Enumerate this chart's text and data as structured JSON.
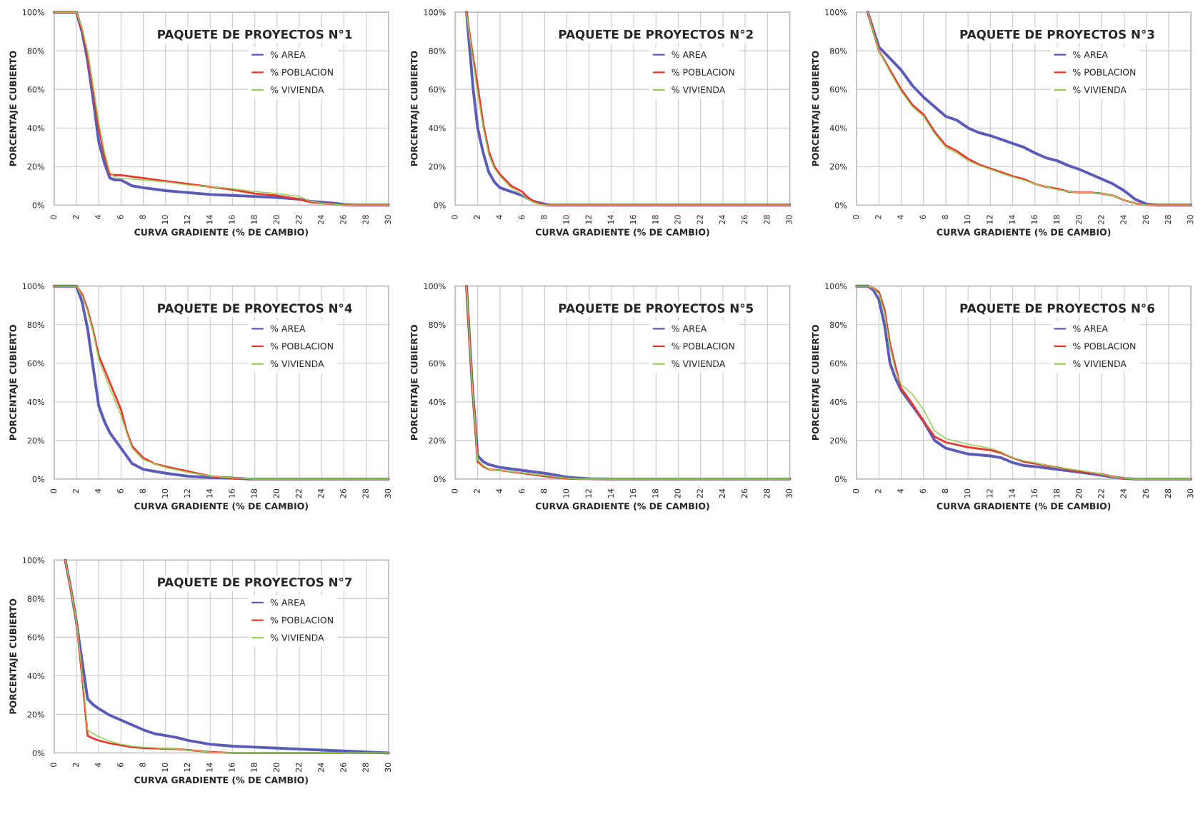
{
  "chart_data": [
    {
      "type": "line",
      "title": "PAQUETE DE PROYECTOS N°1",
      "xlabel": "CURVA GRADIENTE (% DE CAMBIO)",
      "ylabel": "PORCENTAJE CUBIERTO",
      "xlim": [
        0,
        30
      ],
      "xticks": [
        0,
        2,
        4,
        6,
        8,
        10,
        12,
        14,
        16,
        18,
        20,
        22,
        24,
        26,
        28,
        30
      ],
      "ylim": [
        0,
        100
      ],
      "yticks": [
        {
          "value": 0,
          "label": "0%"
        },
        {
          "value": 20,
          "label": "20%"
        },
        {
          "value": 40,
          "label": "40%"
        },
        {
          "value": 60,
          "label": "60%"
        },
        {
          "value": 80,
          "label": "80%"
        },
        {
          "value": 100,
          "label": "100%"
        }
      ],
      "grid": true,
      "legend": "top right",
      "series": [
        {
          "name": "% AREA",
          "color": "#5b5bb8",
          "x": [
            0,
            2,
            2.5,
            3,
            3.5,
            4,
            4.5,
            5,
            5.5,
            6,
            6.5,
            7,
            8,
            10,
            12,
            14,
            16,
            18,
            20,
            22,
            23,
            24,
            25,
            26,
            27,
            30
          ],
          "values": [
            100,
            100,
            90,
            75,
            55,
            33,
            22,
            14,
            13,
            13,
            11.5,
            10,
            9,
            7.5,
            6.5,
            5.5,
            5,
            4.5,
            4,
            3,
            2,
            1.5,
            1,
            0.3,
            0,
            0
          ]
        },
        {
          "name": "% POBLACION",
          "color": "#e8382c",
          "x": [
            0,
            2,
            2.5,
            3,
            3.5,
            4,
            4.5,
            5,
            5.5,
            6,
            8,
            10,
            12,
            14,
            16,
            18,
            20,
            21,
            22,
            23,
            24,
            25,
            26,
            30
          ],
          "values": [
            100,
            100,
            91,
            78,
            60,
            40,
            26,
            16,
            15.5,
            15.5,
            14,
            12.5,
            11,
            9.5,
            8,
            6,
            5,
            4,
            3,
            1.5,
            1,
            0.5,
            0,
            0
          ]
        },
        {
          "name": "% VIVIENDA",
          "color": "#9acd5a",
          "x": [
            0,
            2,
            2.5,
            3,
            3.5,
            4,
            4.5,
            5,
            5.5,
            6,
            8,
            10,
            12,
            14,
            16,
            18,
            20,
            22,
            23,
            24,
            25,
            26,
            30
          ],
          "values": [
            100,
            100,
            92,
            80,
            62,
            43,
            28,
            17,
            14,
            14,
            13,
            12,
            10.5,
            9.5,
            8.5,
            7,
            6,
            4.5,
            2,
            1,
            0.5,
            0,
            0
          ]
        }
      ]
    },
    {
      "type": "line",
      "title": "PAQUETE DE PROYECTOS N°2",
      "xlabel": "CURVA GRADIENTE (% DE CAMBIO)",
      "ylabel": "PORCENTAJE CUBIERTO",
      "xlim": [
        0,
        30
      ],
      "xticks": [
        0,
        2,
        4,
        6,
        8,
        10,
        12,
        14,
        16,
        18,
        20,
        22,
        24,
        26,
        28,
        30
      ],
      "ylim": [
        0,
        100
      ],
      "yticks": [
        {
          "value": 0,
          "label": "0%"
        },
        {
          "value": 20,
          "label": "20%"
        },
        {
          "value": 40,
          "label": "40%"
        },
        {
          "value": 60,
          "label": "60%"
        },
        {
          "value": 80,
          "label": "80%"
        },
        {
          "value": 100,
          "label": "100%"
        }
      ],
      "grid": true,
      "legend": "top right",
      "series": [
        {
          "name": "% AREA",
          "color": "#5b5bb8",
          "x": [
            1,
            1.3,
            1.6,
            2,
            2.5,
            3,
            3.5,
            4,
            5,
            6,
            6.5,
            7,
            8,
            8.5,
            30
          ],
          "values": [
            100,
            80,
            60,
            40,
            27,
            17,
            12,
            9,
            7,
            5,
            3.5,
            2,
            0.5,
            0,
            0
          ]
        },
        {
          "name": "% POBLACION",
          "color": "#e8382c",
          "x": [
            1,
            1.5,
            2,
            2.5,
            3,
            3.5,
            4,
            5,
            6,
            6.5,
            7,
            7.5,
            8,
            30
          ],
          "values": [
            100,
            80,
            62,
            42,
            28,
            20,
            16,
            10,
            7,
            4,
            2,
            1,
            0,
            0
          ]
        },
        {
          "name": "% VIVIENDA",
          "color": "#9acd5a",
          "x": [
            1,
            1.5,
            2,
            2.5,
            3,
            3.5,
            4,
            5,
            6,
            6.5,
            7,
            7.5,
            8,
            30
          ],
          "values": [
            100,
            78,
            58,
            40,
            26,
            19,
            15,
            9,
            5.5,
            3,
            1.5,
            0.5,
            0,
            0
          ]
        }
      ]
    },
    {
      "type": "line",
      "title": "PAQUETE DE PROYECTOS N°3",
      "xlabel": "CURVA GRADIENTE (% DE CAMBIO)",
      "ylabel": "PORCENTAJE CUBIERTO",
      "xlim": [
        0,
        30
      ],
      "xticks": [
        0,
        2,
        4,
        6,
        8,
        10,
        12,
        14,
        16,
        18,
        20,
        22,
        24,
        26,
        28,
        30
      ],
      "ylim": [
        0,
        100
      ],
      "yticks": [
        {
          "value": 0,
          "label": "0%"
        },
        {
          "value": 20,
          "label": "20%"
        },
        {
          "value": 40,
          "label": "40%"
        },
        {
          "value": 60,
          "label": "60%"
        },
        {
          "value": 80,
          "label": "80%"
        },
        {
          "value": 100,
          "label": "100%"
        }
      ],
      "grid": true,
      "legend": "top right",
      "series": [
        {
          "name": "% AREA",
          "color": "#5b5bb8",
          "x": [
            1,
            2,
            3,
            4,
            5,
            6,
            7,
            8,
            9,
            10,
            11,
            12,
            13,
            14,
            15,
            16,
            17,
            18,
            19,
            20,
            21,
            22,
            23,
            24,
            25,
            26,
            27,
            30
          ],
          "values": [
            100,
            82,
            76,
            70,
            62,
            56,
            51,
            46,
            44,
            40,
            37.5,
            36,
            34,
            32,
            30,
            27,
            24.5,
            23,
            20.5,
            18.5,
            16,
            13.5,
            11,
            7.5,
            3,
            0.5,
            0,
            0
          ]
        },
        {
          "name": "% POBLACION",
          "color": "#e8382c",
          "x": [
            1,
            2,
            3,
            4,
            5,
            6,
            7,
            8,
            9,
            10,
            11,
            12,
            13,
            14,
            15,
            16,
            17,
            18,
            19,
            20,
            21,
            22,
            23,
            24,
            25,
            26,
            30
          ],
          "values": [
            100,
            80,
            70,
            60,
            52,
            47,
            38,
            31,
            28,
            24,
            21,
            19,
            17,
            15,
            13.5,
            11,
            9.5,
            8.5,
            7,
            6.5,
            6.5,
            6,
            5,
            2.5,
            1,
            0,
            0
          ]
        },
        {
          "name": "% VIVIENDA",
          "color": "#9acd5a",
          "x": [
            1,
            2,
            3,
            4,
            5,
            6,
            7,
            8,
            9,
            10,
            11,
            12,
            13,
            14,
            15,
            16,
            17,
            18,
            19,
            20,
            21,
            22,
            23,
            24,
            25,
            26,
            30
          ],
          "values": [
            100,
            80,
            69,
            59,
            51,
            46,
            37,
            30,
            27,
            23,
            20.5,
            18.5,
            16.5,
            14.5,
            13,
            11,
            9.5,
            8,
            7,
            6.5,
            6.5,
            6,
            5,
            2.5,
            1,
            0,
            0
          ]
        }
      ]
    },
    {
      "type": "line",
      "title": "PAQUETE DE PROYECTOS N°4",
      "xlabel": "CURVA GRADIENTE (% DE CAMBIO)",
      "ylabel": "PORCENTAJE CUBIERTO",
      "xlim": [
        0,
        30
      ],
      "xticks": [
        0,
        2,
        4,
        6,
        8,
        10,
        12,
        14,
        16,
        18,
        20,
        22,
        24,
        26,
        28,
        30
      ],
      "ylim": [
        0,
        100
      ],
      "yticks": [
        {
          "value": 0,
          "label": "0%"
        },
        {
          "value": 20,
          "label": "20%"
        },
        {
          "value": 40,
          "label": "40%"
        },
        {
          "value": 60,
          "label": "60%"
        },
        {
          "value": 80,
          "label": "80%"
        },
        {
          "value": 100,
          "label": "100%"
        }
      ],
      "grid": true,
      "legend": "top right",
      "series": [
        {
          "name": "% AREA",
          "color": "#5b5bb8",
          "x": [
            0,
            2,
            2.5,
            3,
            3.5,
            4,
            4.5,
            5,
            6,
            7,
            8,
            10,
            12,
            14,
            16,
            17.5,
            30
          ],
          "values": [
            100,
            100,
            92,
            78,
            58,
            38,
            30,
            24,
            16,
            8,
            5,
            3,
            1.5,
            0.8,
            0.5,
            0,
            0
          ]
        },
        {
          "name": "% POBLACION",
          "color": "#e8382c",
          "x": [
            0,
            2,
            2.5,
            3,
            3.5,
            4,
            5,
            6,
            6.5,
            7,
            8,
            9,
            10,
            12,
            14,
            16,
            17.5,
            30
          ],
          "values": [
            100,
            100,
            96,
            88,
            77,
            64,
            50,
            36,
            25,
            17,
            11,
            8,
            6.5,
            4,
            1.5,
            0.5,
            0,
            0
          ]
        },
        {
          "name": "% VIVIENDA",
          "color": "#9acd5a",
          "x": [
            0,
            2,
            2.5,
            3,
            3.5,
            4,
            5,
            6,
            6.5,
            7,
            8,
            9,
            10,
            12,
            14,
            16,
            18,
            30
          ],
          "values": [
            100,
            100,
            95,
            87,
            76,
            62,
            47,
            33,
            24,
            16,
            10,
            8,
            6,
            3.5,
            1.5,
            0.7,
            0,
            0
          ]
        }
      ]
    },
    {
      "type": "line",
      "title": "PAQUETE DE PROYECTOS N°5",
      "xlabel": "CURVA GRADIENTE (% DE CAMBIO)",
      "ylabel": "PORCENTAJE CUBIERTO",
      "xlim": [
        0,
        30
      ],
      "xticks": [
        0,
        2,
        4,
        6,
        8,
        10,
        12,
        14,
        16,
        18,
        20,
        22,
        24,
        26,
        28,
        30
      ],
      "ylim": [
        0,
        100
      ],
      "yticks": [
        {
          "value": 0,
          "label": "0%"
        },
        {
          "value": 20,
          "label": "20%"
        },
        {
          "value": 40,
          "label": "40%"
        },
        {
          "value": 60,
          "label": "60%"
        },
        {
          "value": 80,
          "label": "80%"
        },
        {
          "value": 100,
          "label": "100%"
        }
      ],
      "grid": true,
      "legend": "top right",
      "series": [
        {
          "name": "% AREA",
          "color": "#5b5bb8",
          "x": [
            1,
            1.5,
            2,
            2.5,
            3,
            4,
            6,
            8,
            10,
            11,
            12,
            14,
            30
          ],
          "values": [
            100,
            50,
            12,
            9,
            7.5,
            6,
            4.5,
            3,
            1,
            0.5,
            0.2,
            0,
            0
          ]
        },
        {
          "name": "% POBLACION",
          "color": "#e8382c",
          "x": [
            1,
            1.5,
            2,
            2.5,
            3,
            4,
            6,
            8,
            10,
            11,
            30
          ],
          "values": [
            100,
            50,
            9,
            6.5,
            5,
            4.5,
            3,
            1.5,
            0.3,
            0,
            0
          ]
        },
        {
          "name": "% VIVIENDA",
          "color": "#9acd5a",
          "x": [
            1,
            1.5,
            2,
            2.5,
            3,
            4,
            6,
            8,
            10,
            11,
            30
          ],
          "values": [
            100,
            50,
            10,
            7,
            5,
            4.5,
            3.2,
            1.8,
            0.5,
            0,
            0
          ]
        }
      ]
    },
    {
      "type": "line",
      "title": "PAQUETE DE PROYECTOS N°6",
      "xlabel": "CURVA GRADIENTE (% DE CAMBIO)",
      "ylabel": "PORCENTAJE CUBIERTO",
      "xlim": [
        0,
        30
      ],
      "xticks": [
        0,
        2,
        4,
        6,
        8,
        10,
        12,
        14,
        16,
        18,
        20,
        22,
        24,
        26,
        28,
        30
      ],
      "ylim": [
        0,
        100
      ],
      "yticks": [
        {
          "value": 0,
          "label": "0%"
        },
        {
          "value": 20,
          "label": "20%"
        },
        {
          "value": 40,
          "label": "40%"
        },
        {
          "value": 60,
          "label": "60%"
        },
        {
          "value": 80,
          "label": "80%"
        },
        {
          "value": 100,
          "label": "100%"
        }
      ],
      "grid": true,
      "legend": "top right",
      "series": [
        {
          "name": "% AREA",
          "color": "#5b5bb8",
          "x": [
            0,
            1,
            1.5,
            2,
            2.5,
            3,
            3.5,
            4,
            5,
            6,
            7,
            8,
            10,
            12,
            13,
            14,
            15,
            16,
            18,
            20,
            22,
            23,
            24,
            25,
            30
          ],
          "values": [
            100,
            100,
            98,
            93,
            80,
            60,
            52,
            46,
            38,
            30,
            20,
            16,
            13,
            12,
            11,
            8.5,
            7,
            6.5,
            5,
            3.5,
            2,
            1,
            0.3,
            0,
            0
          ]
        },
        {
          "name": "% POBLACION",
          "color": "#e8382c",
          "x": [
            0,
            1,
            1.5,
            2,
            2.5,
            3,
            3.5,
            4,
            5,
            6,
            7,
            8,
            10,
            12,
            13,
            14,
            15,
            16,
            18,
            20,
            22,
            23,
            24,
            25,
            30
          ],
          "values": [
            100,
            100,
            99,
            97,
            88,
            70,
            58,
            47,
            39,
            30,
            22,
            19,
            16.5,
            15,
            13.5,
            11,
            9,
            8,
            6,
            4,
            2.5,
            1.2,
            0.3,
            0,
            0
          ]
        },
        {
          "name": "% VIVIENDA",
          "color": "#9acd5a",
          "x": [
            0,
            1,
            1.5,
            2,
            2.5,
            3,
            3.5,
            4,
            5,
            6,
            7,
            8,
            10,
            12,
            13,
            14,
            15,
            16,
            18,
            20,
            22,
            23,
            24,
            25,
            30
          ],
          "values": [
            100,
            100,
            99,
            96,
            86,
            68,
            56,
            49,
            44,
            36,
            25,
            21,
            18,
            16,
            14,
            11,
            9.5,
            8.5,
            6,
            4.5,
            2.5,
            1.2,
            0.3,
            0,
            0
          ]
        }
      ]
    },
    {
      "type": "line",
      "title": "PAQUETE DE PROYECTOS N°7",
      "xlabel": "CURVA GRADIENTE (% DE CAMBIO)",
      "ylabel": "PORCENTAJE CUBIERTO",
      "xlim": [
        0,
        30
      ],
      "xticks": [
        0,
        2,
        4,
        6,
        8,
        10,
        12,
        14,
        16,
        18,
        20,
        22,
        24,
        26,
        28,
        30
      ],
      "ylim": [
        0,
        100
      ],
      "yticks": [
        {
          "value": 0,
          "label": "0%"
        },
        {
          "value": 20,
          "label": "20%"
        },
        {
          "value": 40,
          "label": "40%"
        },
        {
          "value": 60,
          "label": "60%"
        },
        {
          "value": 80,
          "label": "80%"
        },
        {
          "value": 100,
          "label": "100%"
        }
      ],
      "grid": true,
      "legend": "top right",
      "series": [
        {
          "name": "% AREA",
          "color": "#5b5bb8",
          "x": [
            1,
            1.5,
            2,
            2.5,
            3,
            3.5,
            4,
            5,
            6,
            7,
            8,
            9,
            10,
            11,
            12,
            14,
            16,
            18,
            20,
            22,
            24,
            26,
            28,
            30
          ],
          "values": [
            100,
            85,
            68,
            48,
            28,
            25,
            23,
            19.5,
            17,
            14.5,
            12,
            10,
            9,
            8,
            6.5,
            4.5,
            3.5,
            3,
            2.5,
            2,
            1.5,
            1,
            0.5,
            0
          ]
        },
        {
          "name": "% POBLACION",
          "color": "#e8382c",
          "x": [
            1,
            1.5,
            2,
            2.5,
            3,
            3.5,
            4,
            5,
            6,
            7,
            8,
            10,
            11,
            12,
            14,
            16,
            30
          ],
          "values": [
            100,
            85,
            68,
            40,
            9,
            7.5,
            6.5,
            5,
            4,
            3,
            2.5,
            2.2,
            2,
            1.5,
            0.5,
            0,
            0
          ]
        },
        {
          "name": "% VIVIENDA",
          "color": "#9acd5a",
          "x": [
            1,
            1.5,
            2,
            2.5,
            3,
            3.5,
            4,
            5,
            6,
            7,
            8,
            10,
            11,
            12,
            14,
            16,
            30
          ],
          "values": [
            100,
            85,
            68,
            42,
            12,
            10,
            8.5,
            6,
            4.5,
            3.5,
            3,
            2.3,
            2,
            1.5,
            0.5,
            0,
            0
          ]
        }
      ]
    }
  ]
}
